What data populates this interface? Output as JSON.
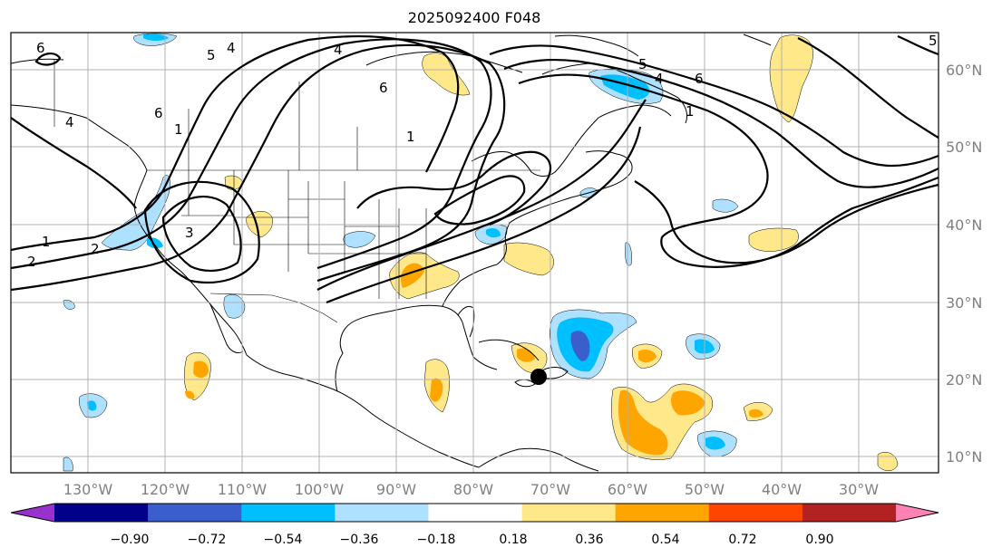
{
  "title": "2025092400 F048",
  "map": {
    "lon_labels": [
      "130°W",
      "120°W",
      "110°W",
      "100°W",
      "90°W",
      "80°W",
      "70°W",
      "60°W",
      "50°W",
      "40°W",
      "30°W"
    ],
    "lat_labels": [
      "60°N",
      "50°N",
      "40°N",
      "30°N",
      "20°N",
      "10°N"
    ],
    "contour_labels": [
      "6",
      "5",
      "4",
      "6",
      "4",
      "1",
      "4",
      "6",
      "5",
      "4",
      "5",
      "6",
      "1",
      "3",
      "1",
      "2",
      "2",
      "1"
    ],
    "marker": "storm-center-dot"
  },
  "colorbar": {
    "ticks": [
      "−0.90",
      "−0.72",
      "−0.54",
      "−0.36",
      "−0.18",
      "0.18",
      "0.36",
      "0.54",
      "0.72",
      "0.90"
    ],
    "colors": [
      "#9932cc",
      "#00008b",
      "#3a5fcd",
      "#00bfff",
      "#aee0ff",
      "#ffffff",
      "#ffe88a",
      "#ffa500",
      "#ff4500",
      "#b22222",
      "#ff82b4"
    ]
  }
}
